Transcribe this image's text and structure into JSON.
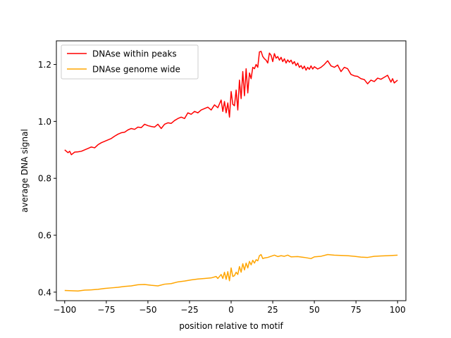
{
  "chart_data": {
    "type": "line",
    "xlabel": "position relative to motif",
    "ylabel": "average DNA signal",
    "xlim": [
      -105,
      105
    ],
    "ylim": [
      0.37,
      1.283
    ],
    "xticks": [
      -100,
      -75,
      -50,
      -25,
      0,
      25,
      50,
      75,
      100
    ],
    "xtick_labels": [
      "−100",
      "−75",
      "−50",
      "−25",
      "0",
      "25",
      "50",
      "75",
      "100"
    ],
    "yticks": [
      0.4,
      0.6,
      0.8,
      1.0,
      1.2
    ],
    "ytick_labels": [
      "0.4",
      "0.6",
      "0.8",
      "1.0",
      "1.2"
    ],
    "grid": false,
    "legend_position": "top-left",
    "series": [
      {
        "name": "DNAse within peaks",
        "color": "#ff0000",
        "points": [
          [
            -100,
            0.9
          ],
          [
            -98,
            0.89
          ],
          [
            -97,
            0.895
          ],
          [
            -96,
            0.883
          ],
          [
            -94,
            0.892
          ],
          [
            -92,
            0.893
          ],
          [
            -90,
            0.895
          ],
          [
            -88,
            0.9
          ],
          [
            -86,
            0.905
          ],
          [
            -84,
            0.91
          ],
          [
            -82,
            0.907
          ],
          [
            -80,
            0.918
          ],
          [
            -78,
            0.925
          ],
          [
            -76,
            0.93
          ],
          [
            -74,
            0.935
          ],
          [
            -72,
            0.94
          ],
          [
            -70,
            0.948
          ],
          [
            -68,
            0.955
          ],
          [
            -66,
            0.96
          ],
          [
            -64,
            0.962
          ],
          [
            -62,
            0.97
          ],
          [
            -60,
            0.975
          ],
          [
            -58,
            0.972
          ],
          [
            -56,
            0.98
          ],
          [
            -54,
            0.978
          ],
          [
            -52,
            0.99
          ],
          [
            -50,
            0.985
          ],
          [
            -48,
            0.982
          ],
          [
            -46,
            0.98
          ],
          [
            -44,
            0.99
          ],
          [
            -42,
            0.975
          ],
          [
            -40,
            0.99
          ],
          [
            -38,
            0.995
          ],
          [
            -36,
            0.993
          ],
          [
            -34,
            1.003
          ],
          [
            -32,
            1.01
          ],
          [
            -30,
            1.015
          ],
          [
            -28,
            1.01
          ],
          [
            -26,
            1.03
          ],
          [
            -24,
            1.025
          ],
          [
            -22,
            1.035
          ],
          [
            -20,
            1.03
          ],
          [
            -18,
            1.04
          ],
          [
            -16,
            1.045
          ],
          [
            -14,
            1.05
          ],
          [
            -12,
            1.04
          ],
          [
            -10,
            1.058
          ],
          [
            -8,
            1.048
          ],
          [
            -6,
            1.075
          ],
          [
            -5,
            1.035
          ],
          [
            -4,
            1.07
          ],
          [
            -3,
            1.03
          ],
          [
            -2,
            1.065
          ],
          [
            -1,
            1.015
          ],
          [
            0,
            1.105
          ],
          [
            1,
            1.06
          ],
          [
            2,
            1.055
          ],
          [
            3,
            1.11
          ],
          [
            4,
            1.04
          ],
          [
            5,
            1.145
          ],
          [
            6,
            1.08
          ],
          [
            7,
            1.175
          ],
          [
            8,
            1.09
          ],
          [
            9,
            1.185
          ],
          [
            10,
            1.1
          ],
          [
            11,
            1.17
          ],
          [
            12,
            1.15
          ],
          [
            13,
            1.19
          ],
          [
            14,
            1.185
          ],
          [
            15,
            1.2
          ],
          [
            16,
            1.19
          ],
          [
            17,
            1.244
          ],
          [
            18,
            1.246
          ],
          [
            19,
            1.228
          ],
          [
            20,
            1.22
          ],
          [
            21,
            1.215
          ],
          [
            22,
            1.205
          ],
          [
            23,
            1.24
          ],
          [
            24,
            1.232
          ],
          [
            25,
            1.21
          ],
          [
            26,
            1.238
          ],
          [
            27,
            1.222
          ],
          [
            28,
            1.228
          ],
          [
            29,
            1.215
          ],
          [
            30,
            1.225
          ],
          [
            31,
            1.21
          ],
          [
            32,
            1.22
          ],
          [
            33,
            1.205
          ],
          [
            34,
            1.216
          ],
          [
            35,
            1.208
          ],
          [
            36,
            1.215
          ],
          [
            37,
            1.202
          ],
          [
            38,
            1.21
          ],
          [
            39,
            1.196
          ],
          [
            40,
            1.205
          ],
          [
            41,
            1.19
          ],
          [
            42,
            1.196
          ],
          [
            43,
            1.185
          ],
          [
            44,
            1.194
          ],
          [
            45,
            1.18
          ],
          [
            46,
            1.19
          ],
          [
            47,
            1.183
          ],
          [
            48,
            1.195
          ],
          [
            49,
            1.184
          ],
          [
            50,
            1.192
          ],
          [
            52,
            1.184
          ],
          [
            54,
            1.19
          ],
          [
            56,
            1.2
          ],
          [
            58,
            1.213
          ],
          [
            60,
            1.195
          ],
          [
            62,
            1.19
          ],
          [
            64,
            1.198
          ],
          [
            66,
            1.175
          ],
          [
            68,
            1.19
          ],
          [
            70,
            1.185
          ],
          [
            72,
            1.165
          ],
          [
            74,
            1.16
          ],
          [
            76,
            1.158
          ],
          [
            78,
            1.15
          ],
          [
            80,
            1.147
          ],
          [
            82,
            1.132
          ],
          [
            84,
            1.145
          ],
          [
            86,
            1.14
          ],
          [
            88,
            1.152
          ],
          [
            90,
            1.148
          ],
          [
            92,
            1.155
          ],
          [
            94,
            1.162
          ],
          [
            95,
            1.15
          ],
          [
            96,
            1.138
          ],
          [
            97,
            1.15
          ],
          [
            98,
            1.135
          ],
          [
            99,
            1.14
          ],
          [
            100,
            1.145
          ]
        ]
      },
      {
        "name": "DNAse genome wide",
        "color": "#ffa500",
        "points": [
          [
            -100,
            0.406
          ],
          [
            -96,
            0.405
          ],
          [
            -92,
            0.404
          ],
          [
            -88,
            0.407
          ],
          [
            -84,
            0.408
          ],
          [
            -80,
            0.41
          ],
          [
            -76,
            0.413
          ],
          [
            -72,
            0.415
          ],
          [
            -68,
            0.417
          ],
          [
            -64,
            0.42
          ],
          [
            -60,
            0.422
          ],
          [
            -56,
            0.426
          ],
          [
            -52,
            0.427
          ],
          [
            -48,
            0.424
          ],
          [
            -44,
            0.422
          ],
          [
            -40,
            0.428
          ],
          [
            -36,
            0.43
          ],
          [
            -32,
            0.436
          ],
          [
            -28,
            0.439
          ],
          [
            -24,
            0.443
          ],
          [
            -20,
            0.446
          ],
          [
            -16,
            0.448
          ],
          [
            -12,
            0.45
          ],
          [
            -9,
            0.455
          ],
          [
            -8,
            0.448
          ],
          [
            -6,
            0.462
          ],
          [
            -5,
            0.448
          ],
          [
            -4,
            0.47
          ],
          [
            -3,
            0.445
          ],
          [
            -2,
            0.472
          ],
          [
            -1,
            0.44
          ],
          [
            0,
            0.485
          ],
          [
            1,
            0.455
          ],
          [
            2,
            0.458
          ],
          [
            3,
            0.47
          ],
          [
            4,
            0.462
          ],
          [
            5,
            0.49
          ],
          [
            6,
            0.47
          ],
          [
            7,
            0.5
          ],
          [
            8,
            0.478
          ],
          [
            9,
            0.502
          ],
          [
            10,
            0.485
          ],
          [
            11,
            0.508
          ],
          [
            12,
            0.496
          ],
          [
            13,
            0.512
          ],
          [
            14,
            0.502
          ],
          [
            15,
            0.514
          ],
          [
            16,
            0.51
          ],
          [
            17,
            0.528
          ],
          [
            18,
            0.532
          ],
          [
            19,
            0.518
          ],
          [
            20,
            0.52
          ],
          [
            22,
            0.522
          ],
          [
            24,
            0.526
          ],
          [
            26,
            0.53
          ],
          [
            28,
            0.525
          ],
          [
            30,
            0.528
          ],
          [
            32,
            0.526
          ],
          [
            34,
            0.53
          ],
          [
            36,
            0.524
          ],
          [
            40,
            0.525
          ],
          [
            44,
            0.522
          ],
          [
            48,
            0.518
          ],
          [
            50,
            0.524
          ],
          [
            54,
            0.526
          ],
          [
            58,
            0.532
          ],
          [
            62,
            0.53
          ],
          [
            66,
            0.529
          ],
          [
            70,
            0.528
          ],
          [
            74,
            0.526
          ],
          [
            78,
            0.523
          ],
          [
            82,
            0.522
          ],
          [
            86,
            0.526
          ],
          [
            90,
            0.527
          ],
          [
            94,
            0.528
          ],
          [
            97,
            0.529
          ],
          [
            100,
            0.53
          ]
        ]
      }
    ]
  }
}
